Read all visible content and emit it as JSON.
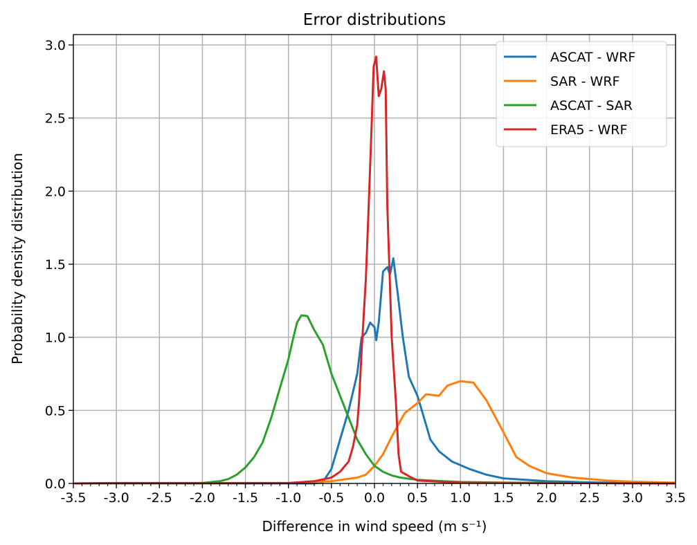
{
  "chart_data": {
    "type": "line",
    "title": "Error distributions",
    "xlabel": "Difference in wind speed (m s⁻¹)",
    "ylabel": "Probability density distribution",
    "xlim": [
      -3.5,
      3.5
    ],
    "ylim": [
      0,
      3.0
    ],
    "grid": true,
    "legend_position": "top-right",
    "xticks": [
      "-3.5",
      "-3.0",
      "-2.5",
      "-2.0",
      "-1.5",
      "-1.0",
      "-0.5",
      "0.0",
      "0.5",
      "1.0",
      "1.5",
      "2.0",
      "2.5",
      "3.0",
      "3.5"
    ],
    "yticks": [
      "0.0",
      "0.5",
      "1.0",
      "1.5",
      "2.0",
      "2.5",
      "3.0"
    ],
    "series": [
      {
        "name": "ASCAT - WRF",
        "color": "#1f77b4",
        "x": [
          -3.5,
          -0.7,
          -0.6,
          -0.5,
          -0.4,
          -0.3,
          -0.2,
          -0.15,
          -0.1,
          -0.05,
          0,
          0.02,
          0.05,
          0.1,
          0.15,
          0.18,
          0.22,
          0.27,
          0.33,
          0.4,
          0.5,
          0.55,
          0.65,
          0.75,
          0.9,
          1.1,
          1.3,
          1.5,
          2.0,
          2.5,
          3.5
        ],
        "y": [
          0,
          0,
          0.01,
          0.1,
          0.3,
          0.5,
          0.75,
          1.0,
          1.03,
          1.1,
          1.07,
          0.98,
          1.1,
          1.45,
          1.48,
          1.43,
          1.54,
          1.3,
          1.0,
          0.73,
          0.6,
          0.5,
          0.3,
          0.22,
          0.15,
          0.1,
          0.06,
          0.035,
          0.015,
          0.007,
          0.002
        ]
      },
      {
        "name": "SAR - WRF",
        "color": "#ff7f0e",
        "x": [
          -3.5,
          -1,
          -0.5,
          -0.2,
          -0.1,
          0,
          0.1,
          0.2,
          0.35,
          0.5,
          0.6,
          0.75,
          0.85,
          1.0,
          1.15,
          1.3,
          1.5,
          1.65,
          1.8,
          2.0,
          2.3,
          2.7,
          3.0,
          3.5
        ],
        "y": [
          0,
          0.002,
          0.015,
          0.04,
          0.06,
          0.12,
          0.2,
          0.32,
          0.48,
          0.55,
          0.61,
          0.6,
          0.67,
          0.7,
          0.69,
          0.57,
          0.35,
          0.18,
          0.12,
          0.07,
          0.04,
          0.02,
          0.012,
          0.005
        ]
      },
      {
        "name": "ASCAT - SAR",
        "color": "#2ca02c",
        "x": [
          -3.5,
          -2,
          -1.8,
          -1.7,
          -1.6,
          -1.5,
          -1.4,
          -1.3,
          -1.2,
          -1.1,
          -1.0,
          -0.95,
          -0.9,
          -0.85,
          -0.78,
          -0.7,
          -0.6,
          -0.5,
          -0.4,
          -0.3,
          -0.2,
          -0.1,
          0,
          0.1,
          0.2,
          0.3,
          0.5,
          0.8,
          1.0,
          1.5,
          3.5
        ],
        "y": [
          0,
          0.003,
          0.015,
          0.03,
          0.06,
          0.11,
          0.18,
          0.28,
          0.45,
          0.65,
          0.85,
          0.98,
          1.1,
          1.15,
          1.145,
          1.05,
          0.95,
          0.75,
          0.6,
          0.45,
          0.3,
          0.2,
          0.12,
          0.08,
          0.055,
          0.04,
          0.025,
          0.015,
          0.01,
          0.005,
          0
        ]
      },
      {
        "name": "ERA5 - WRF",
        "color": "#d62728",
        "x": [
          -3.5,
          -3,
          -1,
          -0.7,
          -0.5,
          -0.4,
          -0.3,
          -0.25,
          -0.2,
          -0.18,
          -0.15,
          -0.1,
          -0.07,
          -0.03,
          -0.01,
          0.02,
          0.05,
          0.08,
          0.11,
          0.13,
          0.15,
          0.2,
          0.25,
          0.28,
          0.31,
          0.4,
          0.5,
          1,
          3.5
        ],
        "y": [
          0,
          0.003,
          0.003,
          0.015,
          0.04,
          0.08,
          0.15,
          0.25,
          0.4,
          0.55,
          0.9,
          1.4,
          1.85,
          2.5,
          2.85,
          2.92,
          2.65,
          2.7,
          2.82,
          2.7,
          1.9,
          1.0,
          0.55,
          0.2,
          0.08,
          0.05,
          0.02,
          0.005,
          0
        ]
      }
    ]
  }
}
